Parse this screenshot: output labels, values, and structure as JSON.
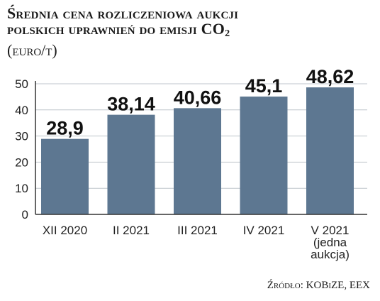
{
  "title": {
    "line1": "Średnia cena rozliczeniowa aukcji",
    "line2_main": "polskich uprawnień do emisji CO",
    "line2_sub": "2",
    "unit": "(euro/t)"
  },
  "source": "Źródło: KOBiZE, EEX",
  "colors": {
    "bar": "#5d7791",
    "grid": "#bfc6cc",
    "axis": "#333333"
  },
  "chart_data": {
    "type": "bar",
    "categories": [
      [
        "XII 2020"
      ],
      [
        "II 2021"
      ],
      [
        "III 2021"
      ],
      [
        "IV 2021"
      ],
      [
        "V 2021",
        "(jedna",
        "aukcja)"
      ]
    ],
    "values": [
      28.9,
      38.14,
      40.66,
      45.1,
      48.62
    ],
    "value_labels": [
      "28,9",
      "38,14",
      "40,66",
      "45,1",
      "48,62"
    ],
    "y_ticks": [
      0,
      10,
      20,
      30,
      40,
      50
    ],
    "ylim": [
      0,
      50
    ],
    "grid": true
  }
}
